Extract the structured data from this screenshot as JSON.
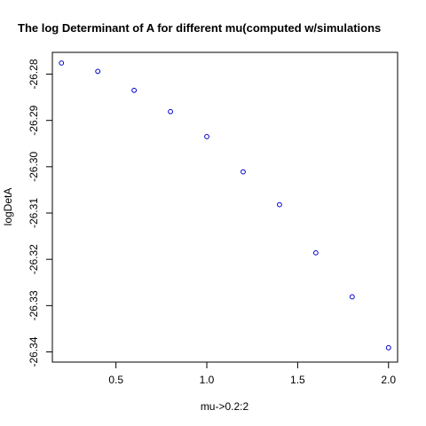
{
  "chart_data": {
    "type": "scatter",
    "title": "The log Determinant of A for different mu(computed w/simulations",
    "xlabel": "mu->0.2:2",
    "ylabel": "logDetA",
    "xlim": [
      0.15,
      2.05
    ],
    "ylim": [
      -26.3422,
      -26.2753
    ],
    "grid": false,
    "x_ticks": [
      0.5,
      1.0,
      1.5,
      2.0
    ],
    "x_tick_labels": [
      "0.5",
      "1.0",
      "1.5",
      "2.0"
    ],
    "y_ticks": [
      -26.34,
      -26.33,
      -26.32,
      -26.31,
      -26.3,
      -26.29,
      -26.28
    ],
    "y_tick_labels": [
      "-26.34",
      "-26.33",
      "-26.32",
      "-26.31",
      "-26.30",
      "-26.29",
      "-26.28"
    ],
    "series": [
      {
        "marker": "open-circle",
        "color": "#0000cc",
        "x": [
          0.2,
          0.4,
          0.6,
          0.8,
          1.0,
          1.2,
          1.4,
          1.6,
          1.8,
          2.0
        ],
        "y": [
          -26.2776,
          -26.2794,
          -26.2835,
          -26.2881,
          -26.2935,
          -26.3011,
          -26.3082,
          -26.3186,
          -26.3281,
          -26.3391
        ]
      }
    ]
  }
}
